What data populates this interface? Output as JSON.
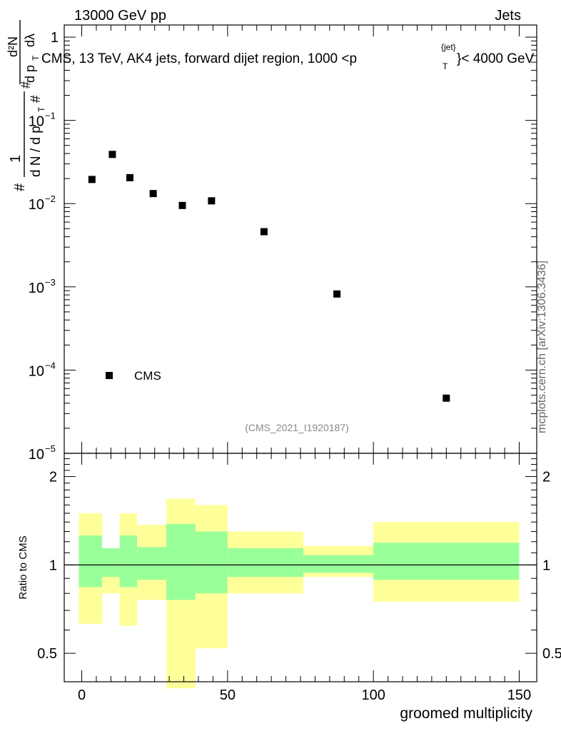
{
  "header": {
    "left": "13000 GeV pp",
    "right": "Jets",
    "title": "CMS, 13 TeV, AK4 jets, forward dijet region, 1000 <p",
    "title_sup": "{jet}",
    "title_sub": "T",
    "title_tail": "}< 4000 GeV",
    "side_label": "mcplots.cern.ch [arXiv:1306.3436]"
  },
  "top_axis": {
    "ylabel_prefix": "#",
    "ylabel_frac_num": "1",
    "ylabel_frac_den": "d N / d p",
    "ylabel_den_sub": "T",
    "ylabel_den_tail": "#",
    "ylabel_frac2_num": "d²N",
    "ylabel_frac2_den": "d p",
    "ylabel_frac2_den_sub": "T",
    "ylabel_frac2_den_tail": "dλ",
    "ylabel_hash": "#",
    "ytick_labels": [
      {
        "mant": "1",
        "exp": ""
      },
      {
        "mant": "10",
        "exp": "−1"
      },
      {
        "mant": "10",
        "exp": "−2"
      },
      {
        "mant": "10",
        "exp": "−3"
      },
      {
        "mant": "10",
        "exp": "−4"
      },
      {
        "mant": "10",
        "exp": "−5"
      }
    ],
    "watermark": "(CMS_2021_I1920187)",
    "legend_label": "CMS"
  },
  "bottom_axis": {
    "ylabel": "Ratio to CMS",
    "ytick_labels": [
      "2",
      "1",
      "0.5"
    ],
    "xtick_labels": [
      "0",
      "50",
      "100",
      "150"
    ],
    "xlabel": "groomed multiplicity"
  },
  "chart_data": [
    {
      "type": "scatter",
      "scale": "log",
      "xlim": [
        -6,
        156
      ],
      "ylim": [
        1e-05,
        1.4
      ],
      "series": [
        {
          "name": "CMS",
          "color": "#000000",
          "points": [
            {
              "x": 3.5,
              "y": 0.0195
            },
            {
              "x": 10.5,
              "y": 0.039
            },
            {
              "x": 16.5,
              "y": 0.0205
            },
            {
              "x": 24.5,
              "y": 0.0132
            },
            {
              "x": 34.5,
              "y": 0.0095
            },
            {
              "x": 44.5,
              "y": 0.0108
            },
            {
              "x": 62.5,
              "y": 0.0046
            },
            {
              "x": 87.5,
              "y": 0.00082
            },
            {
              "x": 125,
              "y": 4.6e-05
            }
          ]
        }
      ]
    },
    {
      "type": "area",
      "scale": "log",
      "xlim": [
        -6,
        156
      ],
      "ylim": [
        0.4,
        2.4
      ],
      "reference": 1,
      "colors": {
        "inner": "#99ff99",
        "outer": "#ffff99",
        "line": "#000000"
      },
      "bands": [
        {
          "xlo": -1,
          "xhi": 7,
          "inner": [
            0.84,
            1.26
          ],
          "outer": [
            0.63,
            1.5
          ]
        },
        {
          "xlo": 7,
          "xhi": 13,
          "inner": [
            0.91,
            1.14
          ],
          "outer": [
            0.8,
            1.14
          ]
        },
        {
          "xlo": 13,
          "xhi": 19,
          "inner": [
            0.84,
            1.26
          ],
          "outer": [
            0.62,
            1.5
          ]
        },
        {
          "xlo": 19,
          "xhi": 29,
          "inner": [
            0.89,
            1.15
          ],
          "outer": [
            0.76,
            1.37
          ]
        },
        {
          "xlo": 29,
          "xhi": 39,
          "inner": [
            0.76,
            1.38
          ],
          "outer": [
            0.38,
            1.68
          ]
        },
        {
          "xlo": 39,
          "xhi": 50,
          "inner": [
            0.8,
            1.3
          ],
          "outer": [
            0.52,
            1.6
          ]
        },
        {
          "xlo": 50,
          "xhi": 76,
          "inner": [
            0.91,
            1.14
          ],
          "outer": [
            0.8,
            1.3
          ]
        },
        {
          "xlo": 76,
          "xhi": 100,
          "inner": [
            0.94,
            1.08
          ],
          "outer": [
            0.91,
            1.16
          ]
        },
        {
          "xlo": 100,
          "xhi": 150,
          "inner": [
            0.89,
            1.19
          ],
          "outer": [
            0.75,
            1.4
          ]
        }
      ]
    }
  ]
}
